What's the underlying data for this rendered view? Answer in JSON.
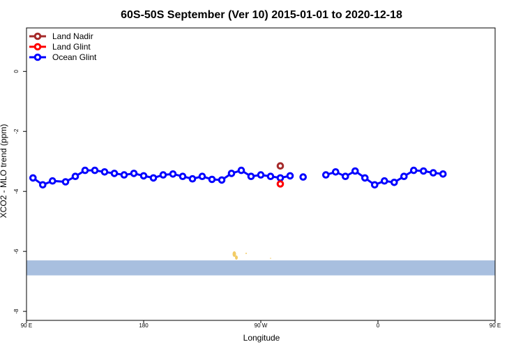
{
  "chart_data": {
    "type": "line",
    "title": "60S-50S September (Ver 10)   2015-01-01 to 2020-12-18",
    "xlabel": "Longitude",
    "ylabel": "XCO2 - MLO trend (ppm)",
    "xlim": [
      90,
      450
    ],
    "ylim": [
      -8.3,
      1.45
    ],
    "x_ticks": [
      {
        "value": 90,
        "label": "90 E"
      },
      {
        "value": 180,
        "label": "180"
      },
      {
        "value": 270,
        "label": "90 W"
      },
      {
        "value": 360,
        "label": "0"
      },
      {
        "value": 450,
        "label": "90 E"
      },
      {
        "value": 540,
        "label": "180"
      }
    ],
    "y_ticks": [
      {
        "value": 0,
        "label": "0"
      },
      {
        "value": -2,
        "label": "-2"
      },
      {
        "value": -4,
        "label": "-4"
      },
      {
        "value": -6,
        "label": "-6"
      },
      {
        "value": -8,
        "label": "-8"
      }
    ],
    "legend_position": "top-left",
    "series": [
      {
        "name": "Land Nadir",
        "color": "#a52a2a",
        "segments": [
          [
            [
              285,
              -3.15
            ]
          ]
        ]
      },
      {
        "name": "Land Glint",
        "color": "#ff0000",
        "segments": [
          [
            [
              285,
              -3.75
            ]
          ]
        ]
      },
      {
        "name": "Ocean Glint",
        "color": "#0000ff",
        "segments": [
          [
            [
              95,
              -3.55
            ],
            [
              102.5,
              -3.78
            ],
            [
              110,
              -3.65
            ],
            [
              120,
              -3.68
            ],
            [
              127.5,
              -3.5
            ],
            [
              135,
              -3.3
            ],
            [
              142.5,
              -3.3
            ],
            [
              150,
              -3.35
            ],
            [
              157.5,
              -3.4
            ],
            [
              165,
              -3.45
            ],
            [
              172.5,
              -3.4
            ],
            [
              180,
              -3.48
            ],
            [
              187.5,
              -3.55
            ],
            [
              195,
              -3.45
            ],
            [
              202.5,
              -3.42
            ],
            [
              210,
              -3.5
            ],
            [
              217.5,
              -3.58
            ],
            [
              225,
              -3.5
            ],
            [
              232.5,
              -3.6
            ],
            [
              240,
              -3.62
            ],
            [
              247.5,
              -3.4
            ],
            [
              255,
              -3.3
            ],
            [
              262.5,
              -3.5
            ],
            [
              270,
              -3.45
            ],
            [
              277.5,
              -3.5
            ],
            [
              285,
              -3.55
            ],
            [
              292.5,
              -3.48
            ]
          ],
          [
            [
              302.5,
              -3.52
            ]
          ],
          [
            [
              320,
              -3.45
            ],
            [
              327.5,
              -3.35
            ],
            [
              335,
              -3.5
            ],
            [
              342.5,
              -3.32
            ],
            [
              350,
              -3.55
            ],
            [
              357.5,
              -3.78
            ],
            [
              365,
              -3.65
            ],
            [
              372.5,
              -3.7
            ],
            [
              380,
              -3.5
            ],
            [
              387.5,
              -3.3
            ],
            [
              395,
              -3.32
            ],
            [
              402.5,
              -3.38
            ],
            [
              410,
              -3.42
            ]
          ]
        ]
      }
    ],
    "background_band": {
      "ymin": -6.8,
      "ymax": -6.3,
      "color": "#a8bfdf"
    }
  }
}
